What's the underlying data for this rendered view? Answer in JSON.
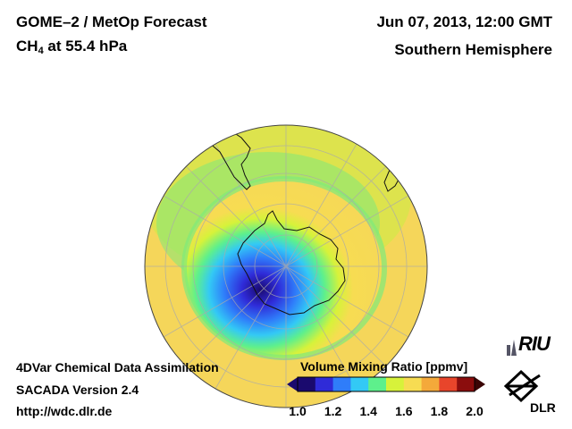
{
  "header": {
    "title_line1": "GOME–2 / MetOp Forecast",
    "title_line2_prefix": "CH",
    "title_line2_sub": "4",
    "title_line2_suffix": " at 55.4 hPa",
    "datetime": "Jun 07, 2013, 12:00 GMT",
    "region": "Southern Hemisphere"
  },
  "footer": {
    "line1": "4DVar Chemical Data Assimilation",
    "line2": "SACADA Version 2.4",
    "line3": "http://wdc.dlr.de"
  },
  "colorbar": {
    "title": "Volume Mixing Ratio [ppmv]",
    "ticks": [
      "1.0",
      "1.2",
      "1.4",
      "1.6",
      "1.8",
      "2.0"
    ],
    "min": 1.0,
    "max": 2.0,
    "colors": [
      "#1a0a6e",
      "#2f2bd8",
      "#2f7dfa",
      "#33c9f5",
      "#5ef08c",
      "#d7f23a",
      "#f7dc52",
      "#f4a93a",
      "#e8452b",
      "#8b0d0d"
    ]
  },
  "map": {
    "projection": "orthographic",
    "pole_value_ppmv": 1.05,
    "vortex_edge_ppmv": 1.35,
    "midlat_ppmv": 1.55,
    "outer_ppmv": 1.68
  },
  "logos": {
    "riu": "RIU",
    "dlr": "DLR"
  }
}
